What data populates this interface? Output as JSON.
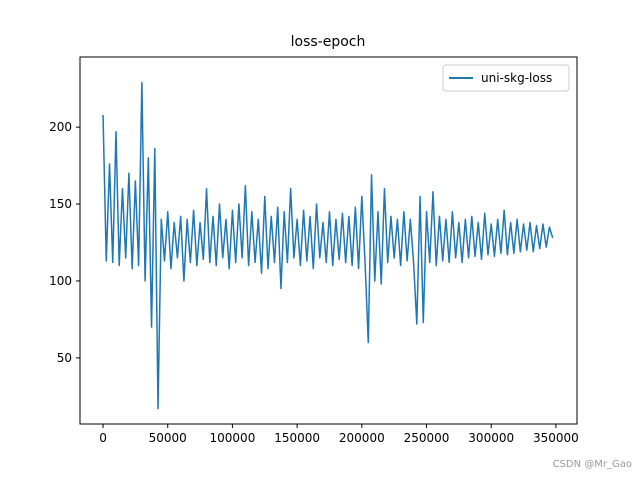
{
  "chart_data": {
    "type": "line",
    "title": "loss-epoch",
    "x": [
      0,
      2500,
      5000,
      7500,
      10000,
      12500,
      15000,
      17500,
      20000,
      22500,
      25000,
      27500,
      30000,
      32500,
      35000,
      37500,
      40000,
      42500,
      45000,
      47500,
      50000,
      52500,
      55000,
      57500,
      60000,
      62500,
      65000,
      67500,
      70000,
      72500,
      75000,
      77500,
      80000,
      82500,
      85000,
      87500,
      90000,
      92500,
      95000,
      97500,
      100000,
      102500,
      105000,
      107500,
      110000,
      112500,
      115000,
      117500,
      120000,
      122500,
      125000,
      127500,
      130000,
      132500,
      135000,
      137500,
      140000,
      142500,
      145000,
      147500,
      150000,
      152500,
      155000,
      157500,
      160000,
      162500,
      165000,
      167500,
      170000,
      172500,
      175000,
      177500,
      180000,
      182500,
      185000,
      187500,
      190000,
      192500,
      195000,
      197500,
      200000,
      202500,
      205000,
      207500,
      210000,
      212500,
      215000,
      217500,
      220000,
      222500,
      225000,
      227500,
      230000,
      232500,
      235000,
      237500,
      240000,
      242500,
      245000,
      247500,
      250000,
      252500,
      255000,
      257500,
      260000,
      262500,
      265000,
      267500,
      270000,
      272500,
      275000,
      277500,
      280000,
      282500,
      285000,
      287500,
      290000,
      292500,
      295000,
      297500,
      300000,
      302500,
      305000,
      307500,
      310000,
      312500,
      315000,
      317500,
      320000,
      322500,
      325000,
      327500,
      330000,
      332500,
      335000,
      337500,
      340000,
      342500,
      345000,
      347500
    ],
    "series": [
      {
        "name": "uni-skg-loss",
        "color": "#1f77b4",
        "values": [
          208,
          113,
          176,
          112,
          197,
          110,
          160,
          115,
          170,
          108,
          165,
          110,
          229,
          100,
          180,
          70,
          186,
          17,
          140,
          113,
          145,
          108,
          138,
          115,
          142,
          100,
          140,
          112,
          146,
          110,
          138,
          114,
          160,
          112,
          142,
          110,
          150,
          115,
          140,
          108,
          146,
          112,
          150,
          115,
          162,
          110,
          145,
          112,
          140,
          105,
          155,
          108,
          142,
          112,
          148,
          95,
          145,
          112,
          160,
          115,
          140,
          110,
          146,
          113,
          142,
          108,
          150,
          115,
          138,
          112,
          145,
          110,
          140,
          114,
          144,
          112,
          142,
          110,
          148,
          108,
          155,
          112,
          60,
          169,
          100,
          145,
          98,
          160,
          112,
          142,
          115,
          140,
          110,
          145,
          113,
          140,
          112,
          72,
          155,
          73,
          145,
          112,
          158,
          110,
          142,
          113,
          140,
          112,
          145,
          115,
          138,
          112,
          140,
          115,
          142,
          116,
          138,
          114,
          144,
          117,
          137,
          116,
          140,
          118,
          146,
          117,
          138,
          118,
          140,
          119,
          137,
          120,
          138,
          119,
          136,
          121,
          137,
          122,
          135,
          128
        ]
      }
    ],
    "xlim": [
      -17800,
      366300
    ],
    "ylim": [
      7,
      245.6
    ],
    "xticks": [
      0,
      50000,
      100000,
      150000,
      200000,
      250000,
      300000,
      350000
    ],
    "yticks": [
      50,
      100,
      150,
      200
    ],
    "legend": "upper right",
    "watermark": "CSDN @Mr_Gao"
  }
}
